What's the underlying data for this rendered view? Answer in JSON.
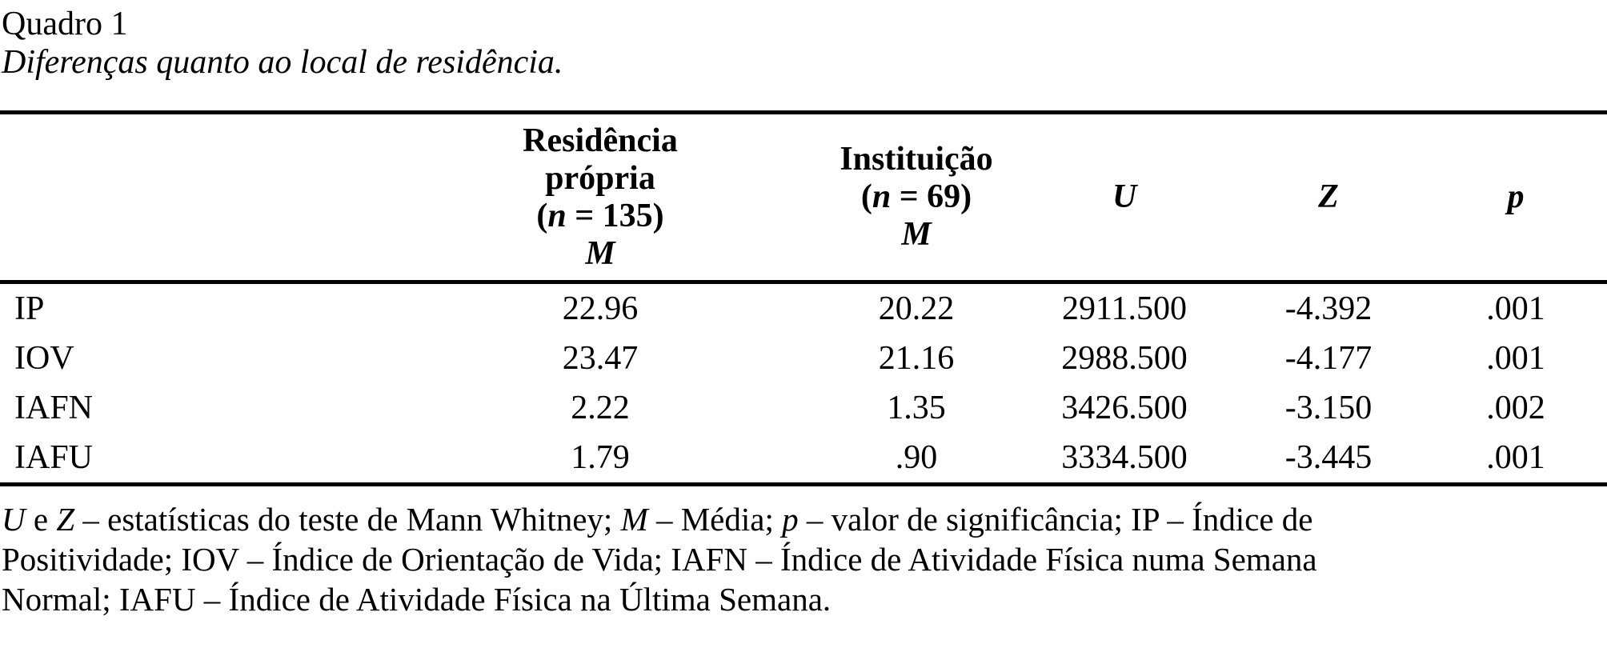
{
  "page": {
    "title": "Quadro 1",
    "subtitle": "Diferenças quanto ao local de residência."
  },
  "table": {
    "header": {
      "col_residencia": {
        "lines": [
          [
            {
              "t": "Residência"
            }
          ],
          [
            {
              "t": "própria"
            }
          ],
          [
            {
              "t": "("
            },
            {
              "t": "n",
              "s": "i"
            },
            {
              "t": " = 135)"
            }
          ],
          [
            {
              "t": "M",
              "s": "i"
            }
          ]
        ]
      },
      "col_instituicao": {
        "lines": [
          [
            {
              "t": "Instituição"
            }
          ],
          [
            {
              "t": "("
            },
            {
              "t": "n",
              "s": "i"
            },
            {
              "t": " = 69)"
            }
          ],
          [
            {
              "t": "M",
              "s": "i"
            }
          ]
        ]
      },
      "col_u": [
        {
          "t": "U",
          "s": "i"
        }
      ],
      "col_z": [
        {
          "t": "Z",
          "s": "i"
        }
      ],
      "col_p": [
        {
          "t": "p",
          "s": "i"
        }
      ]
    },
    "rows": [
      {
        "label": "IP",
        "values": [
          "22.96",
          "20.22",
          "2911.500",
          "-4.392",
          ".001"
        ]
      },
      {
        "label": "IOV",
        "values": [
          "23.47",
          "21.16",
          "2988.500",
          "-4.177",
          ".001"
        ]
      },
      {
        "label": "IAFN",
        "values": [
          "2.22",
          "1.35",
          "3426.500",
          "-3.150",
          ".002"
        ]
      },
      {
        "label": "IAFU",
        "values": [
          "1.79",
          ".90",
          "3334.500",
          "-3.445",
          ".001"
        ]
      }
    ]
  },
  "footnote": {
    "lines": [
      [
        {
          "t": "U",
          "s": "i"
        },
        {
          "t": " e "
        },
        {
          "t": "Z",
          "s": "i"
        },
        {
          "t": " – estatísticas do teste de Mann Whitney; "
        },
        {
          "t": "M",
          "s": "i"
        },
        {
          "t": " – Média; "
        },
        {
          "t": "p",
          "s": "i"
        },
        {
          "t": " – valor de significância; IP – Índice de"
        }
      ],
      [
        {
          "t": "Positividade; IOV – Índice de Orientação de Vida; IAFN – Índice de Atividade Física numa Semana"
        }
      ],
      [
        {
          "t": "Normal; IAFU – Índice de Atividade Física na Última Semana."
        }
      ]
    ]
  },
  "colors": {
    "text": "#000000",
    "background": "#ffffff",
    "rule": "#000000"
  }
}
